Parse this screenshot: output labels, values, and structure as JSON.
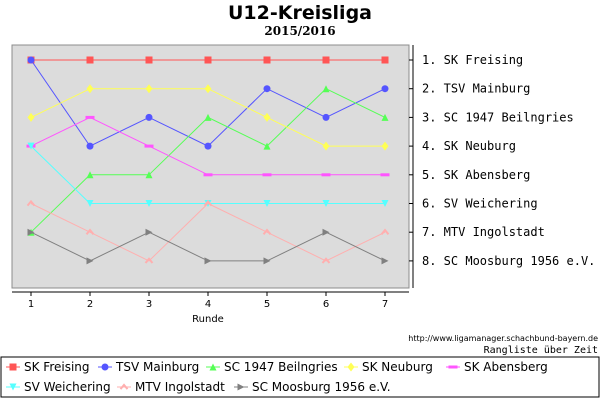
{
  "chart_data": {
    "type": "line",
    "title": "U12-Kreisliga",
    "subtitle": "2015/2016",
    "xlabel": "Runde",
    "ylabel": "",
    "x": [
      1,
      2,
      3,
      4,
      5,
      6,
      7
    ],
    "ylim": [
      1,
      8
    ],
    "y_inverted": true,
    "grid": false,
    "rank_labels": [
      "1. SK Freising",
      "2. TSV Mainburg",
      "3. SC 1947 Beilngries",
      "4. SK Neuburg",
      "5. SK Abensberg",
      "6. SV Weichering",
      "7. MTV Ingolstadt",
      "8. SC Moosburg 1956 e.V."
    ],
    "credit": "http://www.ligamanager.schachbund-bayern.de",
    "caption": "Rangliste über Zeit",
    "legend_position": "bottom",
    "series": [
      {
        "name": "SK Freising",
        "color": "#ff5555",
        "marker": "square",
        "values": [
          1,
          1,
          1,
          1,
          1,
          1,
          1
        ]
      },
      {
        "name": "TSV Mainburg",
        "color": "#5555ff",
        "marker": "circle",
        "values": [
          1,
          4,
          3,
          4,
          2,
          3,
          2
        ]
      },
      {
        "name": "SC 1947 Beilngries",
        "color": "#55ff55",
        "marker": "triangle-up",
        "values": [
          7,
          5,
          5,
          3,
          4,
          2,
          3
        ]
      },
      {
        "name": "SK Neuburg",
        "color": "#ffff55",
        "marker": "diamond",
        "values": [
          3,
          2,
          2,
          2,
          3,
          4,
          4
        ]
      },
      {
        "name": "SK Abensberg",
        "color": "#ff55ff",
        "marker": "bar",
        "values": [
          4,
          3,
          4,
          5,
          5,
          5,
          5
        ]
      },
      {
        "name": "SV Weichering",
        "color": "#55ffff",
        "marker": "triangle-down",
        "values": [
          4,
          6,
          6,
          6,
          6,
          6,
          6
        ]
      },
      {
        "name": "MTV Ingolstadt",
        "color": "#ffafaf",
        "marker": "chevron-up",
        "values": [
          6,
          7,
          8,
          6,
          7,
          8,
          7
        ]
      },
      {
        "name": "SC Moosburg 1956 e.V.",
        "color": "#808080",
        "marker": "triangle-right",
        "values": [
          7,
          8,
          7,
          8,
          8,
          7,
          8
        ]
      }
    ]
  }
}
